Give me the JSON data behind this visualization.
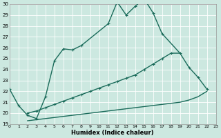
{
  "xlabel": "Humidex (Indice chaleur)",
  "background_color": "#cce8e0",
  "grid_color": "#ffffff",
  "line_color": "#1a6b5a",
  "x_min": 0,
  "x_max": 23,
  "y_min": 19,
  "y_max": 30,
  "series1_x": [
    0,
    1,
    2,
    3,
    4,
    5,
    6,
    7,
    8,
    11,
    12,
    13,
    14,
    15,
    16,
    17
  ],
  "series1_y": [
    22.2,
    20.7,
    19.8,
    19.5,
    21.5,
    24.8,
    25.9,
    25.8,
    26.2,
    28.2,
    30.2,
    29.0,
    29.8,
    30.5,
    29.2,
    27.3
  ],
  "series2_x": [
    2,
    3,
    4,
    5,
    6,
    7,
    8,
    9,
    10,
    11,
    12,
    13,
    14,
    15,
    16,
    17,
    18,
    19,
    20,
    21,
    22
  ],
  "series2_y": [
    20.0,
    20.2,
    20.5,
    20.8,
    21.1,
    21.4,
    21.7,
    22.0,
    22.3,
    22.6,
    22.9,
    23.2,
    23.5,
    24.0,
    24.5,
    25.0,
    25.5,
    25.5,
    24.2,
    23.3,
    22.2
  ],
  "series3_x": [
    2,
    3,
    4,
    5,
    6,
    7,
    8,
    9,
    10,
    11,
    12,
    13,
    14,
    15,
    16,
    17,
    18,
    19,
    20,
    21,
    22
  ],
  "series3_y": [
    19.3,
    19.4,
    19.5,
    19.6,
    19.7,
    19.8,
    19.9,
    20.0,
    20.1,
    20.2,
    20.3,
    20.4,
    20.5,
    20.6,
    20.7,
    20.8,
    20.9,
    21.0,
    21.2,
    21.5,
    22.0
  ],
  "marker_size": 3,
  "line_width": 1.0
}
